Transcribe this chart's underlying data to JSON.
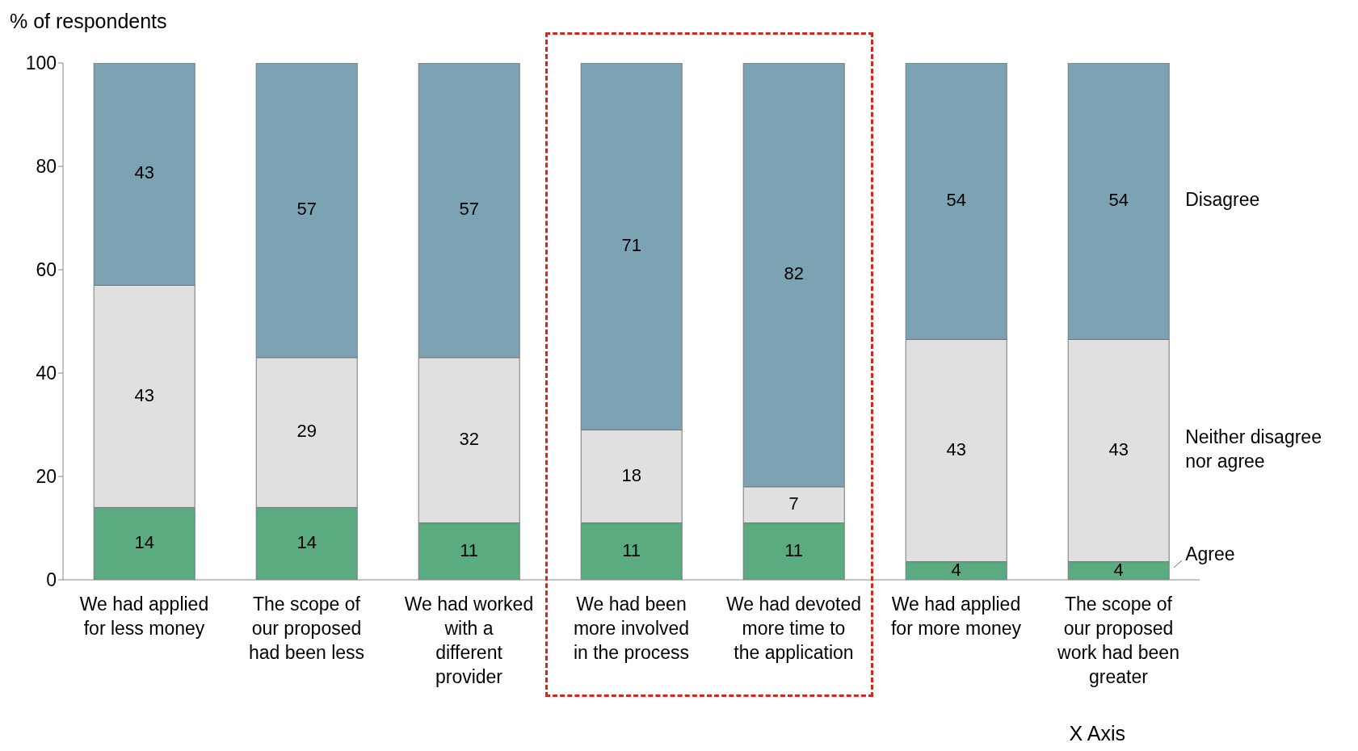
{
  "chart_data": {
    "type": "bar",
    "stacked": true,
    "ylabel": "% of respondents",
    "xlabel": "X Axis",
    "categories": [
      "We had applied for less money",
      "The scope of our proposed had been less",
      "We had worked with a different provider",
      "We had been more involved in the process",
      "We had devoted more time to the application",
      "We had applied for more money",
      "The scope of our proposed work had been greater"
    ],
    "series": [
      {
        "name": "Agree",
        "color": "#5aab80",
        "values": [
          14,
          14,
          11,
          11,
          11,
          3.5,
          3.5
        ],
        "value_labels": [
          "14",
          "14",
          "11",
          "11",
          "11",
          "4",
          "4"
        ]
      },
      {
        "name": "Neither disagree nor agree",
        "color": "#e0e0e0",
        "values": [
          43,
          29,
          32,
          18,
          7,
          43,
          43
        ],
        "value_labels": [
          "43",
          "29",
          "32",
          "18",
          "7",
          "43",
          "43"
        ]
      },
      {
        "name": "Disagree",
        "color": "#7ba3b3",
        "values": [
          43,
          57,
          57,
          71,
          82,
          53.5,
          53.5
        ],
        "value_labels": [
          "43",
          "57",
          "57",
          "71",
          "82",
          "54",
          "54"
        ]
      }
    ],
    "ylim": [
      0,
      100
    ],
    "yticks": [
      0,
      20,
      40,
      60,
      80,
      100
    ],
    "grid": false,
    "legend": "right"
  }
}
